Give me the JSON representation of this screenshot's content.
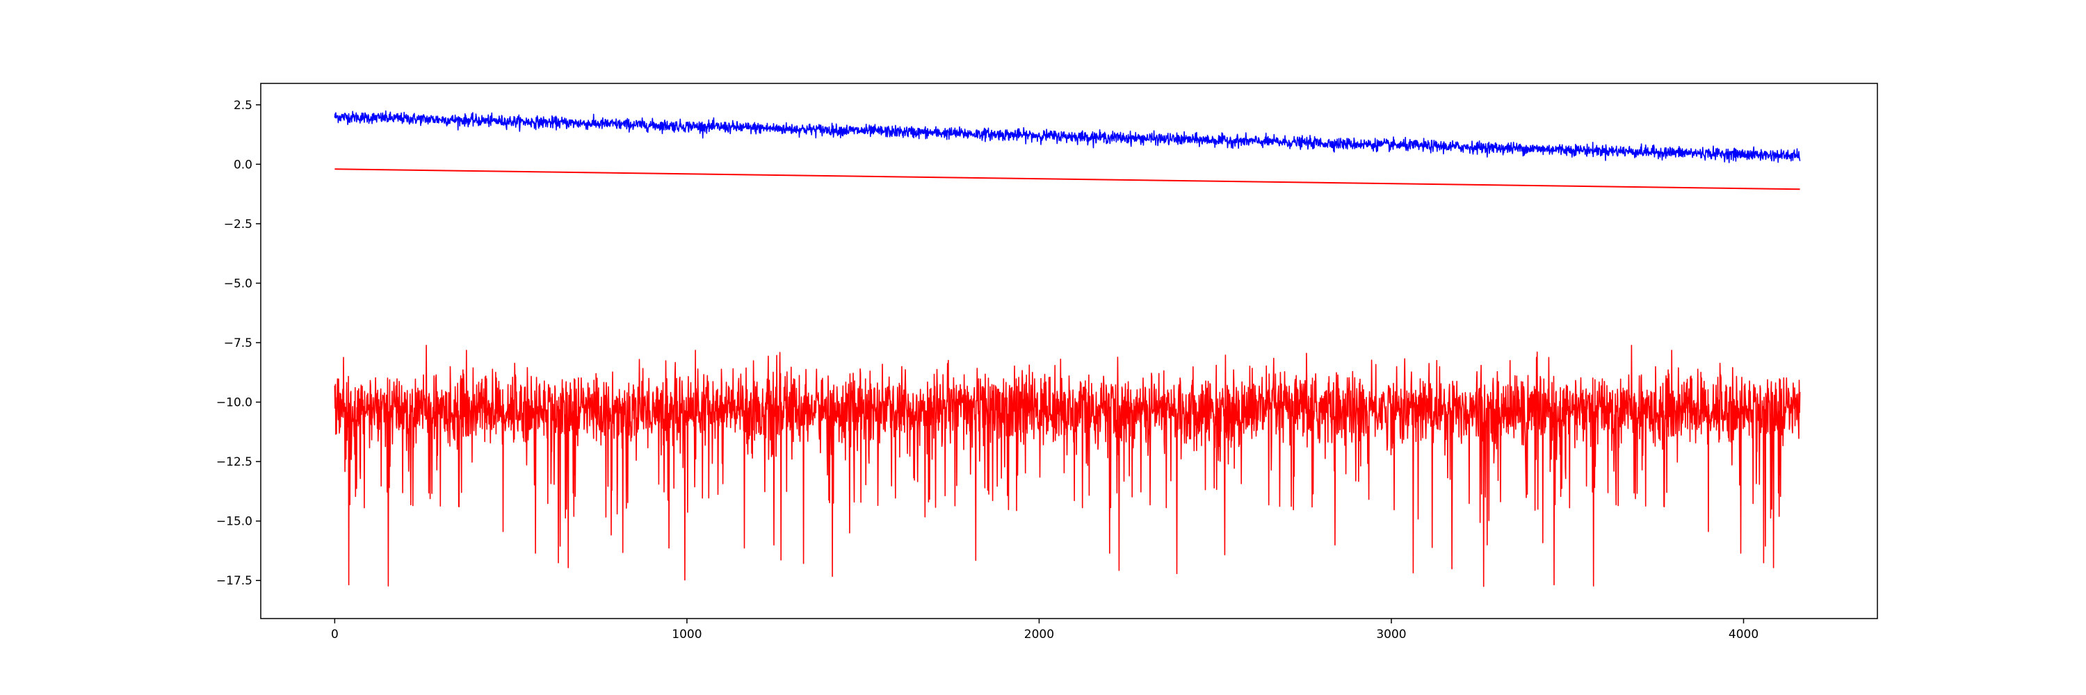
{
  "chart_data": {
    "type": "line",
    "title": "",
    "xlabel": "",
    "ylabel": "",
    "xlim": [
      -210,
      4380
    ],
    "ylim": [
      -19.1,
      3.4
    ],
    "legend": "none",
    "grid": false,
    "x_ticks": [
      0,
      1000,
      2000,
      3000,
      4000
    ],
    "x_tick_labels": [
      "0",
      "1000",
      "2000",
      "3000",
      "4000"
    ],
    "y_ticks": [
      2.5,
      0.0,
      -2.5,
      -5.0,
      -7.5,
      -10.0,
      -12.5,
      -15.0,
      -17.5
    ],
    "y_tick_labels": [
      "2.5",
      "0.0",
      "−2.5",
      "−5.0",
      "−7.5",
      "−10.0",
      "−12.5",
      "−15.0",
      "−17.5"
    ],
    "series": [
      {
        "color": "#0000ff",
        "style": "noisy line, linear downward trend",
        "x": [
          0,
          4160
        ],
        "y": [
          2.0,
          0.35
        ],
        "noise_std": 0.12,
        "num_points": 4160
      },
      {
        "color": "#ff0000",
        "style": "smooth line",
        "x": [
          0,
          4160
        ],
        "y": [
          -0.2,
          -1.05
        ]
      },
      {
        "color": "#ff0000",
        "style": "noisy line around constant level",
        "x": [
          0,
          4160
        ],
        "y": [
          -10.3,
          -10.3
        ],
        "y_range_observed": [
          -18.0,
          -7.6
        ],
        "num_points": 4160
      }
    ]
  }
}
